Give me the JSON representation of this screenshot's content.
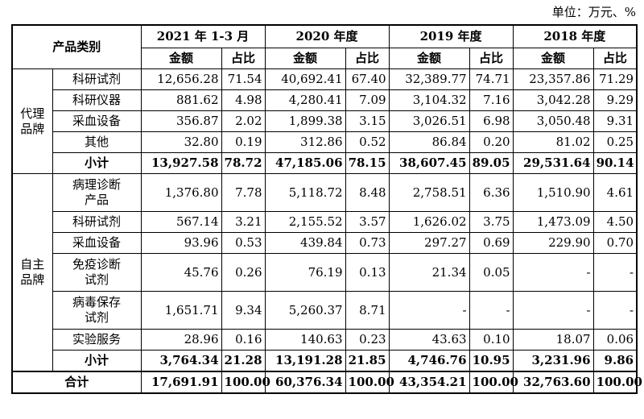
{
  "unit": "单位：万元、%",
  "header": {
    "category": "产品类别",
    "periods": [
      "2021 年 1-3 月",
      "2020 年度",
      "2019 年度",
      "2018 年度"
    ],
    "amount": "金额",
    "ratio": "占比"
  },
  "groups": [
    {
      "name": "代理\n品牌",
      "rows": [
        {
          "item": "科研试剂",
          "v": [
            "12,656.28",
            "71.54",
            "40,692.41",
            "67.40",
            "32,389.77",
            "74.71",
            "23,357.86",
            "71.29"
          ]
        },
        {
          "item": "科研仪器",
          "v": [
            "881.62",
            "4.98",
            "4,280.41",
            "7.09",
            "3,104.32",
            "7.16",
            "3,042.28",
            "9.29"
          ]
        },
        {
          "item": "采血设备",
          "v": [
            "356.87",
            "2.02",
            "1,899.38",
            "3.15",
            "3,026.51",
            "6.98",
            "3,050.48",
            "9.31"
          ]
        },
        {
          "item": "其他",
          "v": [
            "32.80",
            "0.19",
            "312.86",
            "0.52",
            "86.84",
            "0.20",
            "81.02",
            "0.25"
          ]
        }
      ],
      "subtotal": {
        "label": "小计",
        "v": [
          "13,927.58",
          "78.72",
          "47,185.06",
          "78.15",
          "38,607.45",
          "89.05",
          "29,531.64",
          "90.14"
        ]
      }
    },
    {
      "name": "自主\n品牌",
      "rows": [
        {
          "item": "病理诊断\n产品",
          "v": [
            "1,376.80",
            "7.78",
            "5,118.72",
            "8.48",
            "2,758.51",
            "6.36",
            "1,510.90",
            "4.61"
          ]
        },
        {
          "item": "科研试剂",
          "v": [
            "567.14",
            "3.21",
            "2,155.52",
            "3.57",
            "1,626.02",
            "3.75",
            "1,473.09",
            "4.50"
          ]
        },
        {
          "item": "采血设备",
          "v": [
            "93.96",
            "0.53",
            "439.84",
            "0.73",
            "297.27",
            "0.69",
            "229.90",
            "0.70"
          ]
        },
        {
          "item": "免疫诊断\n试剂",
          "v": [
            "45.76",
            "0.26",
            "76.19",
            "0.13",
            "21.34",
            "0.05",
            "-",
            "-"
          ]
        },
        {
          "item": "病毒保存\n试剂",
          "v": [
            "1,651.71",
            "9.34",
            "5,260.37",
            "8.71",
            "-",
            "-",
            "-",
            "-"
          ]
        },
        {
          "item": "实验服务",
          "v": [
            "28.96",
            "0.16",
            "140.63",
            "0.23",
            "43.63",
            "0.10",
            "18.07",
            "0.06"
          ]
        }
      ],
      "subtotal": {
        "label": "小计",
        "v": [
          "3,764.34",
          "21.28",
          "13,191.28",
          "21.85",
          "4,746.76",
          "10.95",
          "3,231.96",
          "9.86"
        ]
      }
    }
  ],
  "total": {
    "label": "合计",
    "v": [
      "17,691.91",
      "100.00",
      "60,376.34",
      "100.00",
      "43,354.21",
      "100.00",
      "32,763.60",
      "100.00"
    ]
  }
}
